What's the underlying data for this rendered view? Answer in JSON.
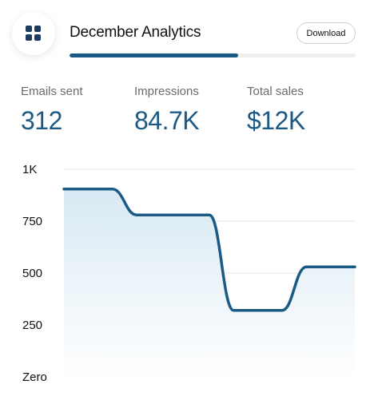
{
  "header": {
    "title": "December Analytics",
    "download_label": "Download",
    "app_icon": "grid-icon",
    "progress": 0.59
  },
  "stats": [
    {
      "label": "Emails sent",
      "value": "312"
    },
    {
      "label": "Impressions",
      "value": "84.7K"
    },
    {
      "label": "Total sales",
      "value": "$12K"
    }
  ],
  "colors": {
    "accent": "#1c5a86",
    "fill": "#dcebf4",
    "grid": "#e6e6e6"
  },
  "chart_data": {
    "type": "area",
    "title": "",
    "xlabel": "",
    "ylabel": "",
    "ylim": [
      0,
      1000
    ],
    "yticks": [
      {
        "value": 1000,
        "label": "1K"
      },
      {
        "value": 750,
        "label": "750"
      },
      {
        "value": 500,
        "label": "500"
      },
      {
        "value": 250,
        "label": "250"
      },
      {
        "value": 0,
        "label": "Zero"
      }
    ],
    "grid": true,
    "series": [
      {
        "values": [
          905,
          905,
          905,
          780,
          780,
          780,
          780,
          320,
          320,
          320,
          530,
          530,
          530
        ]
      }
    ]
  }
}
